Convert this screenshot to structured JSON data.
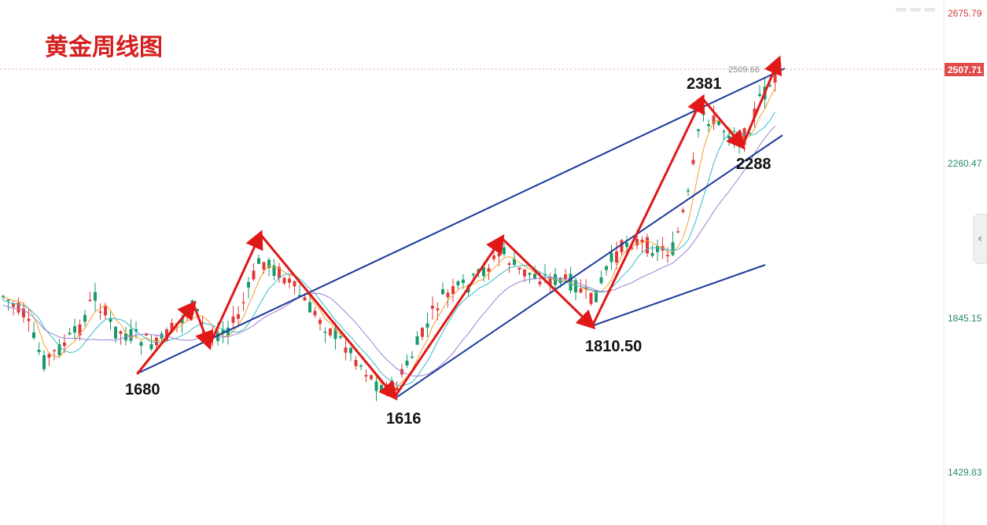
{
  "chart_data": {
    "type": "candlestick",
    "title": "黄金周线图",
    "y_axis": {
      "ticks": [
        "2675.79",
        "2260.47",
        "1845.15",
        "1429.83"
      ],
      "current_price": "2507.71",
      "high_marker": "2509.66"
    },
    "annotations": [
      "1680",
      "1616",
      "1810.50",
      "2381",
      "2288"
    ],
    "colors": {
      "up": "#e03a3a",
      "down": "#1a9a6a",
      "channel": "#1d3a9a",
      "arrow": "#e01818",
      "ma_fast": "#f0a030",
      "ma_mid": "#38b8c8",
      "ma_slow": "#9a80d8",
      "title": "#d41f1f"
    }
  }
}
